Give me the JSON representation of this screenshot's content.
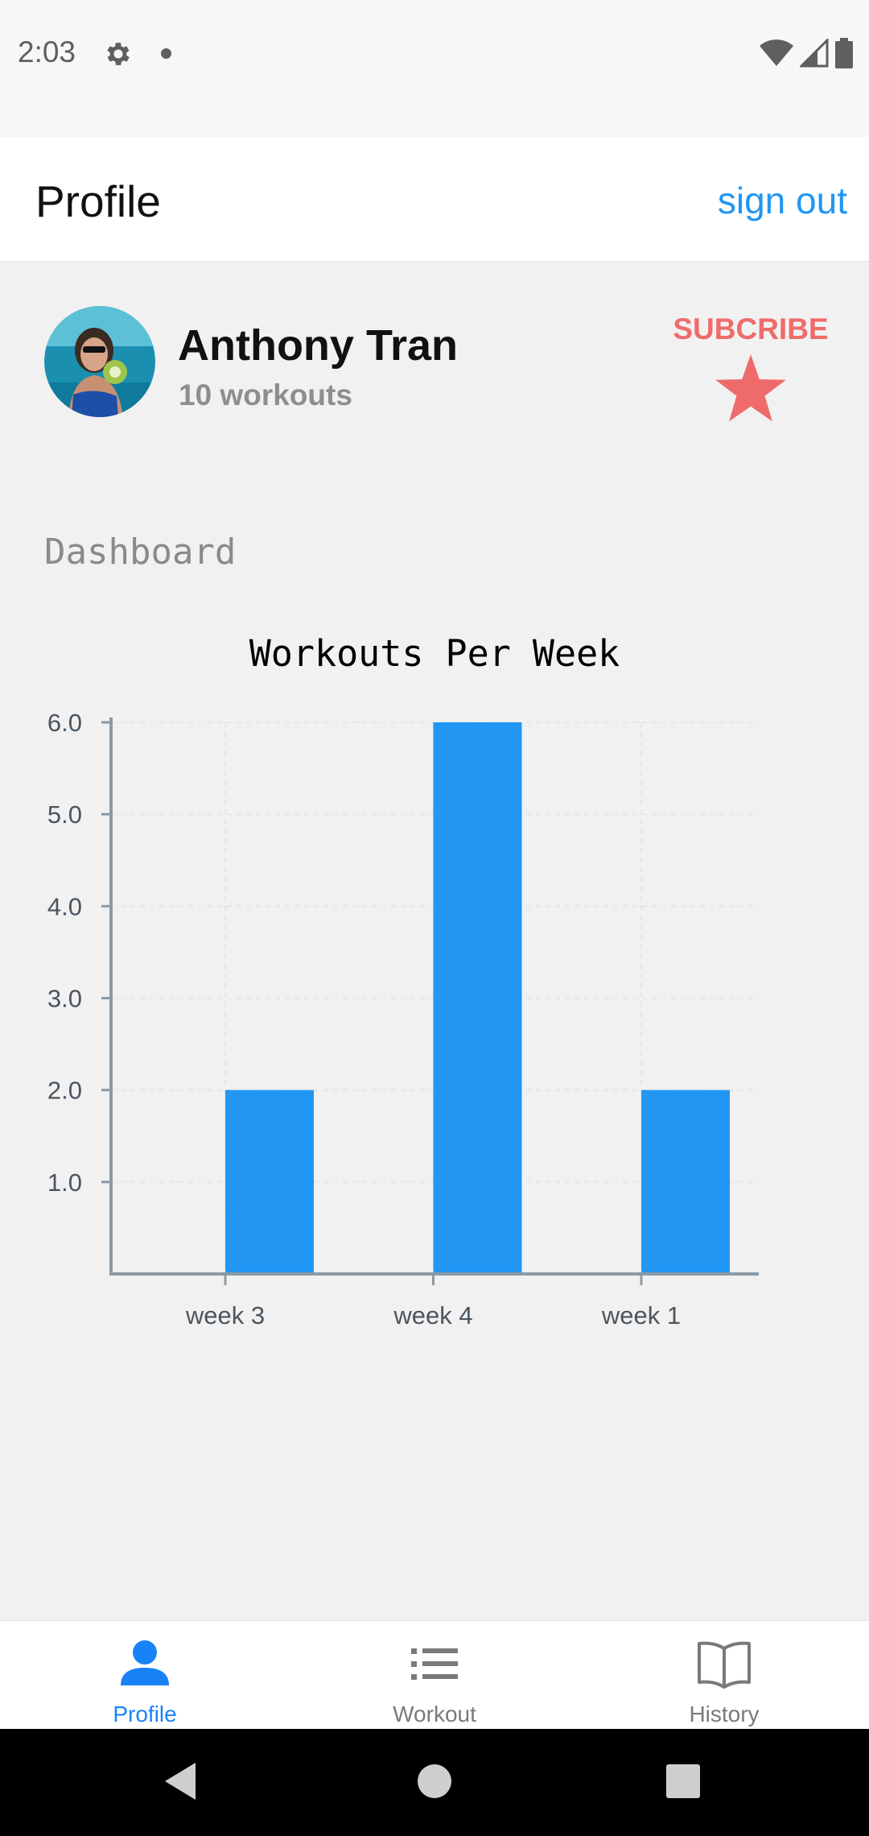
{
  "status_bar": {
    "time": "2:03"
  },
  "header": {
    "title": "Profile",
    "sign_out_label": "sign out"
  },
  "profile": {
    "name": "Anthony Tran",
    "workouts": "10 workouts",
    "subscribe_label": "SUBCRIBE"
  },
  "dashboard": {
    "title": "Dashboard"
  },
  "chart_data": {
    "type": "bar",
    "title": "Workouts Per Week",
    "categories": [
      "week 3",
      "week 4",
      "week 1"
    ],
    "values": [
      2,
      6,
      2
    ],
    "yticks": [
      "1.0",
      "2.0",
      "3.0",
      "4.0",
      "5.0",
      "6.0"
    ],
    "ylim": [
      0,
      6
    ],
    "bar_color": "#2196f3",
    "grid": true
  },
  "bottom_nav": {
    "items": [
      {
        "label": "Profile",
        "icon": "person-icon",
        "active": true
      },
      {
        "label": "Workout",
        "icon": "list-icon",
        "active": false
      },
      {
        "label": "History",
        "icon": "book-icon",
        "active": false
      }
    ]
  },
  "colors": {
    "accent": "#2196f3",
    "subscribe": "#ef6b6b",
    "nav_active": "#1a82f7"
  }
}
